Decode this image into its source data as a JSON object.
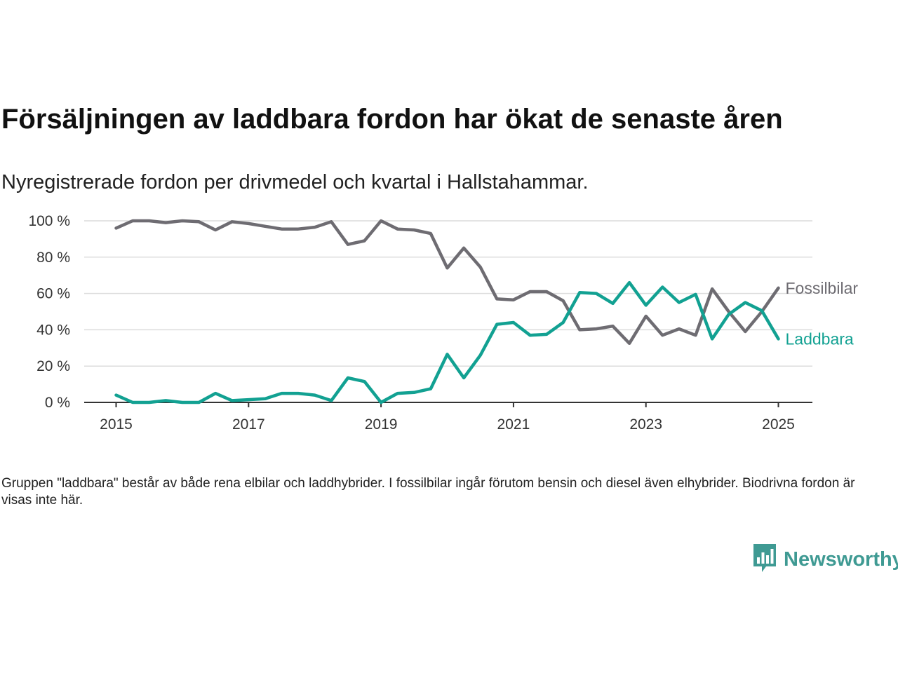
{
  "title": "Försäljningen av laddbara fordon har ökat de senaste åren",
  "subtitle": "Nyregistrerade fordon per drivmedel och kvartal i Hallstahammar.",
  "footnote": "Gruppen \"laddbara\" består av både rena elbilar och laddhybrider. I fossilbilar ingår förutom bensin och diesel även elhybrider. Biodrivna fordon är visas inte här.",
  "brand": {
    "name": "Newsworthy",
    "icon": "newsworthy-logo-icon",
    "color": "#3f9a93"
  },
  "chart_data": {
    "type": "line",
    "x_unit": "quarter",
    "x": [
      "2015-Q1",
      "2015-Q2",
      "2015-Q3",
      "2015-Q4",
      "2016-Q1",
      "2016-Q2",
      "2016-Q3",
      "2016-Q4",
      "2017-Q1",
      "2017-Q2",
      "2017-Q3",
      "2017-Q4",
      "2018-Q1",
      "2018-Q2",
      "2018-Q3",
      "2018-Q4",
      "2019-Q1",
      "2019-Q2",
      "2019-Q3",
      "2019-Q4",
      "2020-Q1",
      "2020-Q2",
      "2020-Q3",
      "2020-Q4",
      "2021-Q1",
      "2021-Q2",
      "2021-Q3",
      "2021-Q4",
      "2022-Q1",
      "2022-Q2",
      "2022-Q3",
      "2022-Q4",
      "2023-Q1",
      "2023-Q2",
      "2023-Q3",
      "2023-Q4",
      "2024-Q1",
      "2024-Q2",
      "2024-Q3",
      "2024-Q4",
      "2025-Q1"
    ],
    "series": [
      {
        "name": "Fossilbilar",
        "color": "#6e6c72",
        "values": [
          96,
          100,
          100,
          99,
          100,
          99.5,
          95,
          99.5,
          98.5,
          97,
          95.5,
          95.5,
          96.5,
          99.5,
          87,
          89,
          100,
          95.5,
          95,
          93,
          74,
          85,
          74.5,
          57,
          56.5,
          61,
          61,
          56,
          40,
          40.5,
          42,
          32.5,
          47.5,
          37,
          40.5,
          37,
          62.5,
          50,
          39,
          50,
          63
        ]
      },
      {
        "name": "Laddbara",
        "color": "#12a192",
        "values": [
          4,
          0,
          0,
          1,
          0,
          0,
          5,
          1,
          1.5,
          2,
          5,
          5,
          4,
          1,
          13.5,
          11.5,
          0,
          5,
          5.5,
          7.5,
          26.5,
          13.5,
          26,
          43,
          44,
          37,
          37.5,
          44,
          60.5,
          60,
          54.5,
          66,
          53.5,
          63.5,
          55,
          59.5,
          35,
          48.5,
          55,
          50.5,
          35
        ]
      }
    ],
    "x_ticks": [
      "2015",
      "2017",
      "2019",
      "2021",
      "2023",
      "2025"
    ],
    "y_ticks": [
      "0 %",
      "20 %",
      "40 %",
      "60 %",
      "80 %",
      "100 %"
    ],
    "ylim": [
      0,
      100
    ],
    "grid": true,
    "legend": "direct labels at line ends"
  }
}
